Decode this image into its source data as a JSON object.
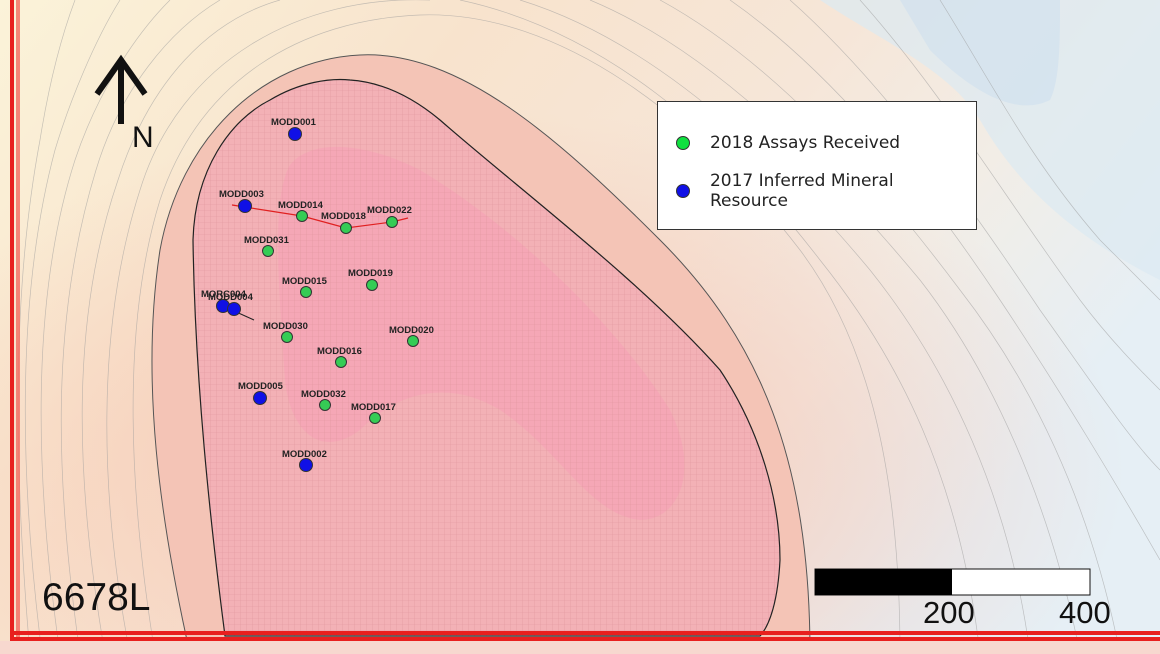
{
  "map": {
    "level_label": "6678L",
    "north_label": "N",
    "colors": {
      "frame": "#e8201e",
      "orebody_fill": "#f2b2b7",
      "orebody_core": "#f5a9b8",
      "grid_line": "#e0959c",
      "assay_green": "#35cc55",
      "resource_blue": "#1010e6",
      "section_line": "#e02020"
    }
  },
  "legend": {
    "items": [
      {
        "label": "2018 Assays Received",
        "color": "#10e040",
        "icon": "green-circle-icon"
      },
      {
        "label": "2017 Inferred Mineral Resource",
        "color": "#1010e6",
        "icon": "blue-circle-icon"
      }
    ]
  },
  "scale_bar": {
    "labels": [
      "200",
      "400"
    ]
  },
  "drill_holes": [
    {
      "name": "MODD001",
      "status": "2017 Inferred Mineral Resource"
    },
    {
      "name": "MODD003",
      "status": "2017 Inferred Mineral Resource"
    },
    {
      "name": "MODD014",
      "status": "2018 Assays Received"
    },
    {
      "name": "MODD018",
      "status": "2018 Assays Received"
    },
    {
      "name": "MODD022",
      "status": "2018 Assays Received"
    },
    {
      "name": "MODD031",
      "status": "2018 Assays Received"
    },
    {
      "name": "MODD015",
      "status": "2018 Assays Received"
    },
    {
      "name": "MODD019",
      "status": "2018 Assays Received"
    },
    {
      "name": "MORC004",
      "status": "2017 Inferred Mineral Resource"
    },
    {
      "name": "MODD004",
      "status": "2017 Inferred Mineral Resource"
    },
    {
      "name": "MODD030",
      "status": "2018 Assays Received"
    },
    {
      "name": "MODD020",
      "status": "2018 Assays Received"
    },
    {
      "name": "MODD016",
      "status": "2018 Assays Received"
    },
    {
      "name": "MODD005",
      "status": "2017 Inferred Mineral Resource"
    },
    {
      "name": "MODD032",
      "status": "2018 Assays Received"
    },
    {
      "name": "MODD017",
      "status": "2018 Assays Received"
    },
    {
      "name": "MODD002",
      "status": "2017 Inferred Mineral Resource"
    }
  ]
}
